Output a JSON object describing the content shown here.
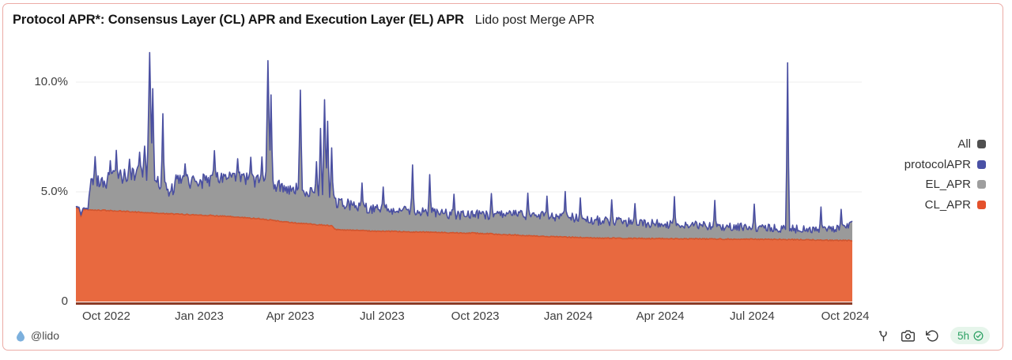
{
  "card": {
    "title": "Protocol APR*: Consensus Layer (CL) APR and Execution Layer (EL) APR",
    "subtitle": "Lido post Merge APR"
  },
  "watermark": {
    "handle": "@lido"
  },
  "actions": {
    "refresh_age": "5h"
  },
  "legend": {
    "items": [
      {
        "label": "All",
        "color": "#4f4f4f"
      },
      {
        "label": "protocolAPR",
        "color": "#4a51a5"
      },
      {
        "label": "EL_APR",
        "color": "#9e9e9e"
      },
      {
        "label": "CL_APR",
        "color": "#e4512c"
      }
    ]
  },
  "chart_data": {
    "type": "area",
    "stacked": true,
    "title": "Protocol APR*: Consensus Layer (CL) APR and Execution Layer (EL) APR",
    "subtitle": "Lido post Merge APR",
    "x_range": [
      "2022-09-01",
      "2024-10-08"
    ],
    "x_ticks": [
      {
        "date": "2022-10-01",
        "label": "Oct 2022"
      },
      {
        "date": "2023-01-01",
        "label": "Jan 2023"
      },
      {
        "date": "2023-04-01",
        "label": "Apr 2023"
      },
      {
        "date": "2023-07-01",
        "label": "Jul 2023"
      },
      {
        "date": "2023-10-01",
        "label": "Oct 2023"
      },
      {
        "date": "2024-01-01",
        "label": "Jan 2024"
      },
      {
        "date": "2024-04-01",
        "label": "Apr 2024"
      },
      {
        "date": "2024-07-01",
        "label": "Jul 2024"
      },
      {
        "date": "2024-10-01",
        "label": "Oct 2024"
      }
    ],
    "y_axis": {
      "unit": "%",
      "ticks": [
        {
          "value": 0,
          "label": "0"
        },
        {
          "value": 5,
          "label": "5.0%"
        },
        {
          "value": 10,
          "label": "10.0%"
        }
      ],
      "gridlines": [
        5,
        10
      ],
      "clamp": 11.45
    },
    "grid_color": "#ededed",
    "baseline_color": "#8a3b27",
    "series": [
      {
        "name": "CL_APR",
        "type": "area",
        "color": "#e8693f",
        "line_color": "#d0552f",
        "anchors": [
          [
            "2022-09-01",
            4.25
          ],
          [
            "2022-09-04",
            4.25
          ],
          [
            "2022-09-06",
            3.88
          ],
          [
            "2022-09-08",
            4.2
          ],
          [
            "2022-10-15",
            4.12
          ],
          [
            "2022-12-01",
            4.0
          ],
          [
            "2023-01-15",
            3.92
          ],
          [
            "2023-03-01",
            3.78
          ],
          [
            "2023-04-01",
            3.6
          ],
          [
            "2023-05-12",
            3.46
          ],
          [
            "2023-05-15",
            3.28
          ],
          [
            "2023-07-01",
            3.2
          ],
          [
            "2023-10-01",
            3.12
          ],
          [
            "2023-12-01",
            2.98
          ],
          [
            "2024-02-01",
            2.89
          ],
          [
            "2024-05-01",
            2.86
          ],
          [
            "2024-08-01",
            2.83
          ],
          [
            "2024-10-08",
            2.78
          ]
        ]
      },
      {
        "name": "EL_APR",
        "type": "area",
        "color": "#9a9a9a",
        "anchors": [
          [
            "2022-09-01",
            0.06
          ],
          [
            "2022-09-13",
            0.06
          ],
          [
            "2022-09-15",
            1.15
          ],
          [
            "2022-10-01",
            1.4
          ],
          [
            "2022-11-05",
            1.8
          ],
          [
            "2022-11-20",
            1.6
          ],
          [
            "2022-12-03",
            0.95
          ],
          [
            "2022-12-10",
            1.5
          ],
          [
            "2023-01-10",
            1.6
          ],
          [
            "2023-02-15",
            1.8
          ],
          [
            "2023-03-20",
            1.6
          ],
          [
            "2023-04-20",
            1.5
          ],
          [
            "2023-05-15",
            1.25
          ],
          [
            "2023-06-15",
            1.05
          ],
          [
            "2023-08-01",
            0.95
          ],
          [
            "2023-09-15",
            0.8
          ],
          [
            "2023-11-15",
            0.95
          ],
          [
            "2024-01-01",
            0.9
          ],
          [
            "2024-02-15",
            0.75
          ],
          [
            "2024-04-01",
            0.68
          ],
          [
            "2024-06-01",
            0.58
          ],
          [
            "2024-08-01",
            0.48
          ],
          [
            "2024-09-20",
            0.5
          ],
          [
            "2024-10-01",
            0.6
          ],
          [
            "2024-10-08",
            0.85
          ]
        ]
      },
      {
        "name": "protocolAPR",
        "type": "line",
        "color": "#4a4fa1",
        "definition": "CL_APR + EL_APR"
      }
    ],
    "spikes": [
      [
        "2022-09-20",
        6.6,
        1.6
      ],
      [
        "2022-10-05",
        6.4,
        1.4
      ],
      [
        "2022-10-11",
        6.9,
        1.4
      ],
      [
        "2022-10-24",
        6.5,
        1.4
      ],
      [
        "2022-11-03",
        6.8,
        1.6
      ],
      [
        "2022-11-08",
        7.1,
        1.8
      ],
      [
        "2022-11-13",
        11.35,
        2.4
      ],
      [
        "2022-11-16",
        9.7,
        1.6
      ],
      [
        "2022-11-26",
        8.55,
        1.5
      ],
      [
        "2022-12-18",
        6.3,
        1.4
      ],
      [
        "2023-01-16",
        6.9,
        1.5
      ],
      [
        "2023-02-08",
        6.5,
        1.4
      ],
      [
        "2023-02-21",
        6.6,
        1.4
      ],
      [
        "2023-03-04",
        6.6,
        1.4
      ],
      [
        "2023-03-10",
        11.0,
        2.2
      ],
      [
        "2023-03-13",
        9.4,
        1.6
      ],
      [
        "2023-04-11",
        9.65,
        1.8
      ],
      [
        "2023-04-27",
        6.4,
        1.4
      ],
      [
        "2023-05-01",
        7.9,
        1.6
      ],
      [
        "2023-05-05",
        9.2,
        2.0
      ],
      [
        "2023-05-08",
        8.2,
        1.6
      ],
      [
        "2023-05-12",
        7.0,
        1.5
      ],
      [
        "2023-06-11",
        5.4,
        1.3
      ],
      [
        "2023-07-02",
        5.2,
        1.3
      ],
      [
        "2023-07-31",
        6.25,
        1.4
      ],
      [
        "2023-08-17",
        5.8,
        1.4
      ],
      [
        "2023-09-10",
        4.9,
        1.3
      ],
      [
        "2023-10-17",
        4.9,
        1.3
      ],
      [
        "2023-11-22",
        4.95,
        1.3
      ],
      [
        "2023-12-11",
        4.8,
        1.3
      ],
      [
        "2023-12-29",
        5.0,
        1.3
      ],
      [
        "2024-01-13",
        4.7,
        1.3
      ],
      [
        "2024-02-13",
        4.65,
        1.3
      ],
      [
        "2024-03-07",
        4.45,
        1.3
      ],
      [
        "2024-04-15",
        4.8,
        1.3
      ],
      [
        "2024-05-25",
        4.6,
        1.3
      ],
      [
        "2024-07-03",
        4.45,
        1.3
      ],
      [
        "2024-08-05",
        10.9,
        1.6
      ],
      [
        "2024-09-07",
        4.3,
        1.3
      ],
      [
        "2024-09-27",
        4.2,
        1.3
      ]
    ],
    "noise": {
      "seed": 42,
      "cl_amplitude": 0.05,
      "el_amplitude_anchors": [
        [
          "2022-09-01",
          0.02
        ],
        [
          "2022-09-14",
          0.02
        ],
        [
          "2022-09-16",
          0.38
        ],
        [
          "2023-01-01",
          0.35
        ],
        [
          "2023-06-01",
          0.25
        ],
        [
          "2023-10-01",
          0.22
        ],
        [
          "2024-03-01",
          0.19
        ],
        [
          "2024-10-08",
          0.17
        ]
      ]
    }
  }
}
